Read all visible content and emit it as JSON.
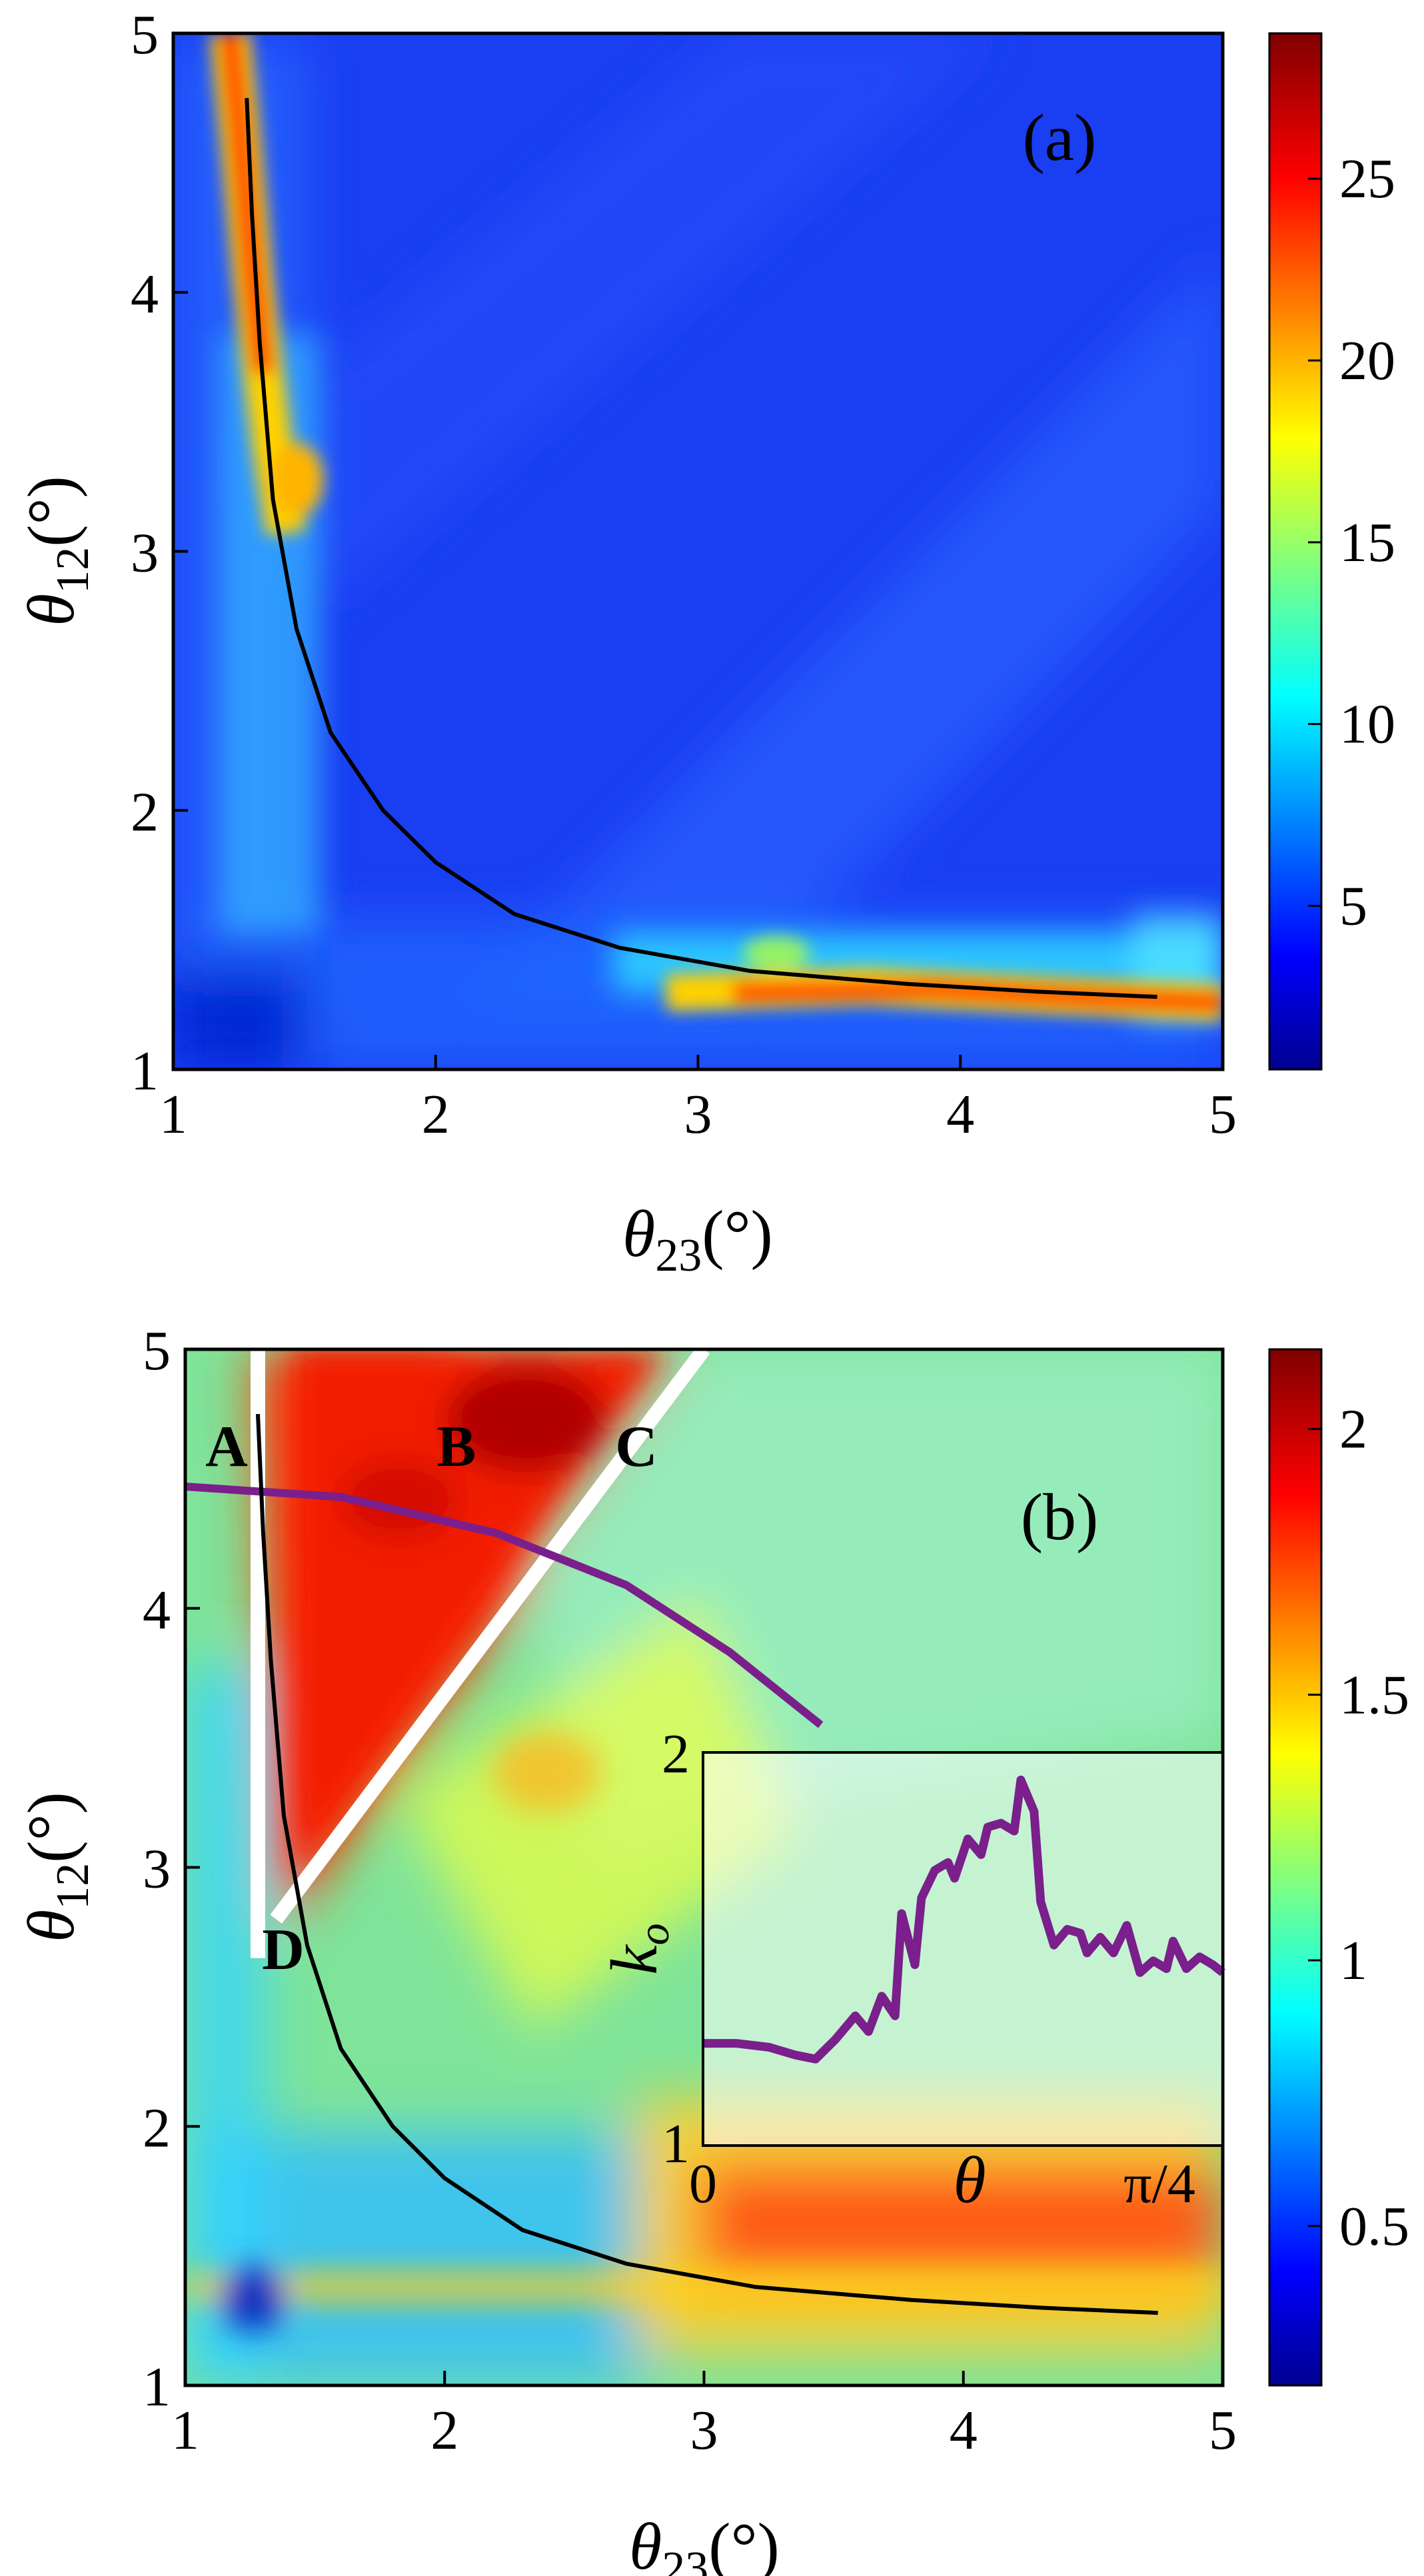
{
  "chart_data": [
    {
      "panel": "(a)",
      "type": "heatmap",
      "xlabel": "θ23(°)",
      "ylabel": "θ12(°)",
      "xlim": [
        1,
        5
      ],
      "ylim": [
        1,
        5
      ],
      "xticks": [
        "1",
        "2",
        "3",
        "4",
        "5"
      ],
      "yticks": [
        "1",
        "2",
        "3",
        "4",
        "5"
      ],
      "colorbar": {
        "min": 0.5,
        "max": 29,
        "ticks": [
          "5",
          "10",
          "15",
          "20",
          "25"
        ],
        "tick_values": [
          5,
          10,
          15,
          20,
          25
        ]
      },
      "curve": {
        "color": "#000000",
        "x": [
          1.28,
          1.3,
          1.33,
          1.38,
          1.47,
          1.6,
          1.8,
          2.0,
          2.3,
          2.7,
          3.2,
          3.8,
          4.3,
          4.75
        ],
        "y": [
          4.75,
          4.3,
          3.8,
          3.2,
          2.7,
          2.3,
          2.0,
          1.8,
          1.6,
          1.47,
          1.38,
          1.33,
          1.3,
          1.28
        ]
      }
    },
    {
      "panel": "(b)",
      "type": "heatmap",
      "xlabel": "θ23(°)",
      "ylabel": "θ12(°)",
      "xlim": [
        1,
        5
      ],
      "ylim": [
        1,
        5
      ],
      "xticks": [
        "1",
        "2",
        "3",
        "4",
        "5"
      ],
      "yticks": [
        "1",
        "2",
        "3",
        "4",
        "5"
      ],
      "colorbar": {
        "min": 0.2,
        "max": 2.15,
        "ticks": [
          "0.5",
          "1",
          "1.5",
          "2"
        ],
        "tick_values": [
          0.5,
          1,
          1.5,
          2
        ]
      },
      "points": [
        {
          "label": "A",
          "x": 1.25,
          "y": 4.75
        },
        {
          "label": "B",
          "x": 2.1,
          "y": 4.75
        },
        {
          "label": "C",
          "x": 2.85,
          "y": 4.75
        },
        {
          "label": "D",
          "x": 1.5,
          "y": 2.6
        }
      ],
      "white_lines": [
        {
          "x": [
            1.28,
            1.28
          ],
          "y": [
            2.65,
            5.0
          ]
        },
        {
          "x": [
            1.35,
            3.0
          ],
          "y": [
            2.8,
            5.0
          ]
        }
      ],
      "arc": {
        "color": "#7a1f8c",
        "x": [
          1.0,
          1.6,
          2.2,
          2.7,
          3.1,
          3.45
        ],
        "y": [
          4.47,
          4.43,
          4.29,
          4.09,
          3.83,
          3.55
        ]
      },
      "curve": {
        "color": "#000000",
        "x": [
          1.28,
          1.3,
          1.33,
          1.38,
          1.47,
          1.6,
          1.8,
          2.0,
          2.3,
          2.7,
          3.2,
          3.8,
          4.3,
          4.75
        ],
        "y": [
          4.75,
          4.3,
          3.8,
          3.2,
          2.7,
          2.3,
          2.0,
          1.8,
          1.6,
          1.47,
          1.38,
          1.33,
          1.3,
          1.28
        ]
      },
      "inset": {
        "type": "line",
        "xlabel": "θ",
        "ylabel": "k_o",
        "xticks": [
          "0",
          "π/4"
        ],
        "yticks": [
          "1",
          "2"
        ],
        "xlim": [
          0,
          0.785
        ],
        "ylim": [
          1,
          2
        ],
        "series": [
          {
            "color": "#7a1f8c",
            "x": [
              0.0,
              0.05,
              0.1,
              0.14,
              0.17,
              0.2,
              0.23,
              0.25,
              0.27,
              0.29,
              0.3,
              0.32,
              0.33,
              0.35,
              0.37,
              0.38,
              0.4,
              0.42,
              0.43,
              0.45,
              0.47,
              0.48,
              0.5,
              0.51,
              0.53,
              0.55,
              0.57,
              0.58,
              0.6,
              0.62,
              0.64,
              0.66,
              0.68,
              0.7,
              0.71,
              0.73,
              0.75,
              0.77,
              0.785
            ],
            "y": [
              1.26,
              1.26,
              1.25,
              1.23,
              1.22,
              1.27,
              1.33,
              1.29,
              1.38,
              1.33,
              1.59,
              1.46,
              1.63,
              1.7,
              1.72,
              1.68,
              1.78,
              1.74,
              1.81,
              1.82,
              1.8,
              1.93,
              1.85,
              1.62,
              1.51,
              1.55,
              1.54,
              1.49,
              1.53,
              1.49,
              1.56,
              1.44,
              1.47,
              1.45,
              1.52,
              1.45,
              1.48,
              1.46,
              1.44
            ]
          }
        ]
      }
    }
  ]
}
